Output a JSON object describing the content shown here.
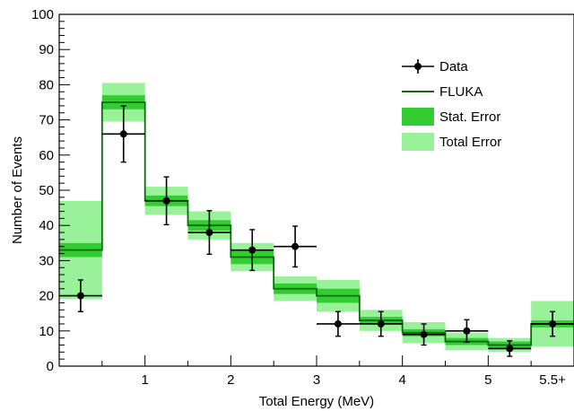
{
  "chart_data": {
    "type": "histogram-with-error-bands",
    "xlabel": "Total Energy (MeV)",
    "ylabel": "Number of Events",
    "ylim": [
      0,
      100
    ],
    "y_major_ticks": [
      0,
      10,
      20,
      30,
      40,
      50,
      60,
      70,
      80,
      90,
      100
    ],
    "x_tick_labels": [
      "1",
      "2",
      "3",
      "4",
      "5",
      "5.5+"
    ],
    "bin_edges": [
      0,
      0.5,
      1,
      1.5,
      2,
      2.5,
      3,
      3.5,
      4,
      4.5,
      5,
      5.5,
      6
    ],
    "fluka": {
      "values": [
        33,
        75,
        47,
        40,
        31,
        22,
        20,
        13,
        9.5,
        7,
        6,
        12
      ],
      "stat_error": [
        2,
        2,
        1.5,
        1.5,
        2,
        1.5,
        2,
        1,
        1,
        1,
        1,
        1
      ],
      "total_error": [
        14,
        5.5,
        4,
        4,
        4,
        3.5,
        4.5,
        3,
        3,
        2.5,
        2,
        6.5
      ]
    },
    "data": {
      "x": [
        0.25,
        0.75,
        1.25,
        1.75,
        2.25,
        2.75,
        3.25,
        3.75,
        4.25,
        4.75,
        5.25,
        5.75
      ],
      "y": [
        20,
        66,
        47,
        38,
        33,
        34,
        12,
        12,
        9,
        10,
        5,
        12
      ],
      "yerr": [
        4.5,
        8,
        6.8,
        6.2,
        5.8,
        5.8,
        3.5,
        3.5,
        3,
        3.2,
        2.2,
        3.5
      ]
    },
    "legend": {
      "position": "top-right",
      "entries": [
        {
          "label": "Data",
          "style": "marker"
        },
        {
          "label": "FLUKA",
          "style": "line"
        },
        {
          "label": "Stat. Error",
          "style": "band-stat"
        },
        {
          "label": "Total Error",
          "style": "band-total"
        }
      ]
    },
    "colors": {
      "fluka_line": "#0b6e0b",
      "stat_band": "#33cc33",
      "total_band": "#99f299",
      "data": "#000000"
    }
  }
}
